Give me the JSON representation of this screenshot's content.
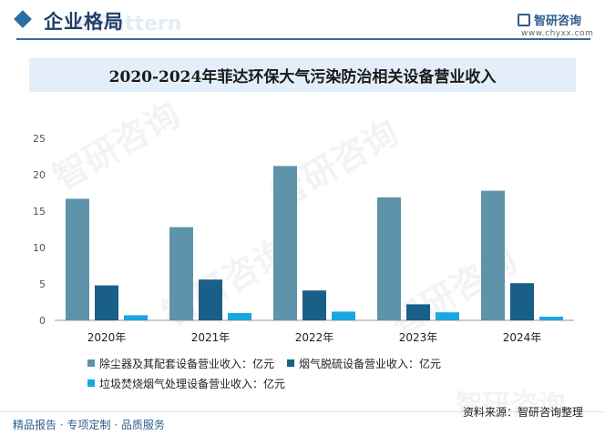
{
  "header": {
    "section_title": "企业格局",
    "watermark_sub": "e Pattern",
    "brand_name": "智研咨询",
    "brand_url": "www.chyxx.com"
  },
  "chart_data": {
    "type": "bar",
    "title": "2020-2024年菲达环保大气污染防治相关设备营业收入",
    "categories": [
      "2020年",
      "2021年",
      "2022年",
      "2023年",
      "2024年"
    ],
    "series": [
      {
        "name": "除尘器及其配套设备营业收入：亿元",
        "color": "#5e93aa",
        "values": [
          16.7,
          12.8,
          21.2,
          16.9,
          17.8
        ]
      },
      {
        "name": "烟气脱硫设备营业收入：亿元",
        "color": "#1a5f87",
        "values": [
          4.8,
          5.6,
          4.1,
          2.2,
          5.1
        ]
      },
      {
        "name": "垃圾焚烧烟气处理设备营业收入：亿元",
        "color": "#1aa6e0",
        "values": [
          0.7,
          1.0,
          1.2,
          1.1,
          0.5
        ]
      }
    ],
    "ylim": [
      0,
      25
    ],
    "yticks": [
      0,
      5,
      10,
      15,
      20,
      25
    ],
    "grid": false,
    "legend_position": "bottom"
  },
  "footer": {
    "left": "精品报告 · 专项定制 · 品质服务",
    "right": "资料来源：智研咨询整理"
  },
  "watermark": "智研咨询"
}
